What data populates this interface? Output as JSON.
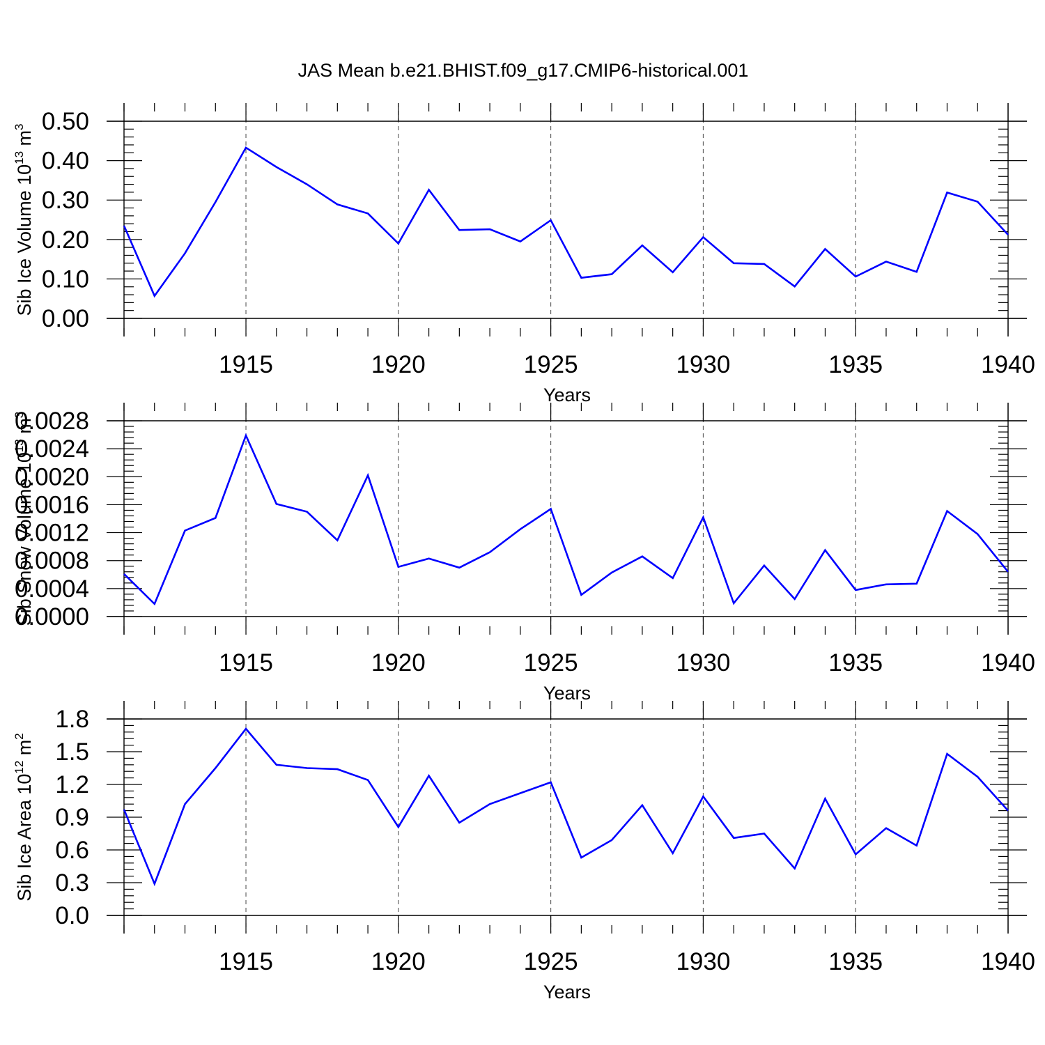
{
  "figure_title": "JAS Mean b.e21.BHIST.f09_g17.CMIP6-historical.001",
  "colors": {
    "line": "#0000ff",
    "axes": "#000000",
    "grid": "#555555"
  },
  "chart_data": [
    {
      "type": "line",
      "xlabel": "Years",
      "ylabel": "Sib Ice Volume 10",
      "ylabel_exp": "13",
      "ylabel_unit": "m",
      "ylabel_unit_exp": "3",
      "xlim": [
        1911,
        1940
      ],
      "ylim": [
        0,
        0.5
      ],
      "yticks": [
        0.0,
        0.1,
        0.2,
        0.3,
        0.4,
        0.5
      ],
      "ytick_labels": [
        "0.00",
        "0.10",
        "0.20",
        "0.30",
        "0.40",
        "0.50"
      ],
      "xticks": [
        1915,
        1920,
        1925,
        1930,
        1935,
        1940
      ],
      "xtick_labels": [
        "1915",
        "1920",
        "1925",
        "1930",
        "1935",
        "1940"
      ],
      "x": [
        1911,
        1912,
        1913,
        1914,
        1915,
        1916,
        1917,
        1918,
        1919,
        1920,
        1921,
        1922,
        1923,
        1924,
        1925,
        1926,
        1927,
        1928,
        1929,
        1930,
        1931,
        1932,
        1933,
        1934,
        1935,
        1936,
        1937,
        1938,
        1939,
        1940
      ],
      "y": [
        0.235,
        0.057,
        0.165,
        0.295,
        0.433,
        0.384,
        0.34,
        0.289,
        0.266,
        0.19,
        0.326,
        0.224,
        0.226,
        0.195,
        0.249,
        0.103,
        0.112,
        0.185,
        0.117,
        0.206,
        0.14,
        0.138,
        0.081,
        0.176,
        0.106,
        0.144,
        0.118,
        0.319,
        0.296,
        0.212
      ]
    },
    {
      "type": "line",
      "xlabel": "Years",
      "ylabel": "Sib Snow Volume 10",
      "ylabel_exp": "13",
      "ylabel_unit": "m",
      "ylabel_unit_exp": "3",
      "xlim": [
        1911,
        1940
      ],
      "ylim": [
        0,
        0.0028
      ],
      "yticks": [
        0.0,
        0.0004,
        0.0008,
        0.0012,
        0.0016,
        0.002,
        0.0024,
        0.0028
      ],
      "ytick_labels": [
        "0.0000",
        "0.0004",
        "0.0008",
        "0.0012",
        "0.0016",
        "0.0020",
        "0.0024",
        "0.0028"
      ],
      "xticks": [
        1915,
        1920,
        1925,
        1930,
        1935,
        1940
      ],
      "xtick_labels": [
        "1915",
        "1920",
        "1925",
        "1930",
        "1935",
        "1940"
      ],
      "x": [
        1911,
        1912,
        1913,
        1914,
        1915,
        1916,
        1917,
        1918,
        1919,
        1920,
        1921,
        1922,
        1923,
        1924,
        1925,
        1926,
        1927,
        1928,
        1929,
        1930,
        1931,
        1932,
        1933,
        1934,
        1935,
        1936,
        1937,
        1938,
        1939,
        1940
      ],
      "y": [
        0.00061,
        0.00018,
        0.00123,
        0.00141,
        0.00259,
        0.00161,
        0.0015,
        0.00109,
        0.00202,
        0.00071,
        0.00083,
        0.0007,
        0.00092,
        0.00125,
        0.00154,
        0.00031,
        0.00063,
        0.00086,
        0.00055,
        0.00142,
        0.00019,
        0.00073,
        0.00025,
        0.00095,
        0.00038,
        0.00046,
        0.00047,
        0.00151,
        0.00118,
        0.00064
      ]
    },
    {
      "type": "line",
      "xlabel": "Years",
      "ylabel": "Sib Ice Area 10",
      "ylabel_exp": "12",
      "ylabel_unit": "m",
      "ylabel_unit_exp": "2",
      "xlim": [
        1911,
        1940
      ],
      "ylim": [
        0,
        1.8
      ],
      "yticks": [
        0.0,
        0.3,
        0.6,
        0.9,
        1.2,
        1.5,
        1.8
      ],
      "ytick_labels": [
        "0.0",
        "0.3",
        "0.6",
        "0.9",
        "1.2",
        "1.5",
        "1.8"
      ],
      "xticks": [
        1915,
        1920,
        1925,
        1930,
        1935,
        1940
      ],
      "xtick_labels": [
        "1915",
        "1920",
        "1925",
        "1930",
        "1935",
        "1940"
      ],
      "x": [
        1911,
        1912,
        1913,
        1914,
        1915,
        1916,
        1917,
        1918,
        1919,
        1920,
        1921,
        1922,
        1923,
        1924,
        1925,
        1926,
        1927,
        1928,
        1929,
        1930,
        1931,
        1932,
        1933,
        1934,
        1935,
        1936,
        1937,
        1938,
        1939,
        1940
      ],
      "y": [
        0.97,
        0.29,
        1.02,
        1.35,
        1.71,
        1.38,
        1.35,
        1.34,
        1.24,
        0.81,
        1.28,
        0.85,
        1.02,
        1.12,
        1.22,
        0.53,
        0.69,
        1.01,
        0.57,
        1.09,
        0.71,
        0.75,
        0.43,
        1.07,
        0.56,
        0.8,
        0.64,
        1.48,
        1.27,
        0.96
      ]
    }
  ]
}
